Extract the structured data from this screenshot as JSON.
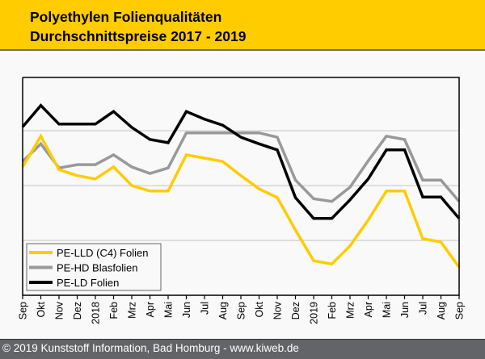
{
  "header": {
    "title_line1": "Polyethylen Folienqualitäten",
    "title_line2": "Durchschnittspreise 2017 - 2019"
  },
  "footer": {
    "text": "© 2019 Kunststoff Information, Bad Homburg - www.kiweb.de"
  },
  "colors": {
    "header_bg": "#ffcc00",
    "footer_bg": "#636468",
    "pe_lld": "#ffcc00",
    "pe_hd": "#999999",
    "pe_ld": "#000000",
    "gridline": "#cfcfcf"
  },
  "chart_data": {
    "type": "line",
    "title": "Polyethylen Folienqualitäten Durchschnittspreise 2017 - 2019",
    "xlabel": "",
    "ylabel": "",
    "y_axis_labels_shown": false,
    "y_units": "relative (gridlines at 1, 2, 3; no numeric labels shown)",
    "ylim": [
      0,
      3.97
    ],
    "gridlines_y": [
      1,
      2,
      3
    ],
    "grid": true,
    "legend_position": "bottom-left",
    "categories": [
      "Sep",
      "Okt",
      "Nov",
      "Dez",
      "2018",
      "Feb",
      "Mrz",
      "Apr",
      "Mai",
      "Jun",
      "Jul",
      "Aug",
      "Sep",
      "Okt",
      "Nov",
      "Dez",
      "2019",
      "Feb",
      "Mrz",
      "Apr",
      "Mai",
      "Jun",
      "Jul",
      "Aug",
      "Sep"
    ],
    "series": [
      {
        "name": "PE-LLD (C4) Folien",
        "color": "#ffcc00",
        "values": [
          2.34,
          2.9,
          2.29,
          2.18,
          2.12,
          2.34,
          2.0,
          1.9,
          1.9,
          2.56,
          2.5,
          2.44,
          2.18,
          1.94,
          1.78,
          1.19,
          0.63,
          0.57,
          0.9,
          1.37,
          1.9,
          1.9,
          1.03,
          0.97,
          0.51
        ]
      },
      {
        "name": "PE-HD Blasfolien",
        "color": "#999999",
        "values": [
          2.44,
          2.76,
          2.32,
          2.38,
          2.38,
          2.56,
          2.34,
          2.22,
          2.32,
          2.96,
          2.96,
          2.96,
          2.96,
          2.96,
          2.88,
          2.1,
          1.76,
          1.71,
          1.97,
          2.45,
          2.9,
          2.84,
          2.1,
          2.1,
          1.71
        ]
      },
      {
        "name": "PE-LD Folien",
        "color": "#000000",
        "values": [
          3.07,
          3.46,
          3.12,
          3.12,
          3.12,
          3.35,
          3.06,
          2.84,
          2.78,
          3.35,
          3.21,
          3.1,
          2.88,
          2.76,
          2.65,
          1.78,
          1.4,
          1.4,
          1.74,
          2.12,
          2.65,
          2.65,
          1.79,
          1.79,
          1.4
        ]
      }
    ]
  }
}
